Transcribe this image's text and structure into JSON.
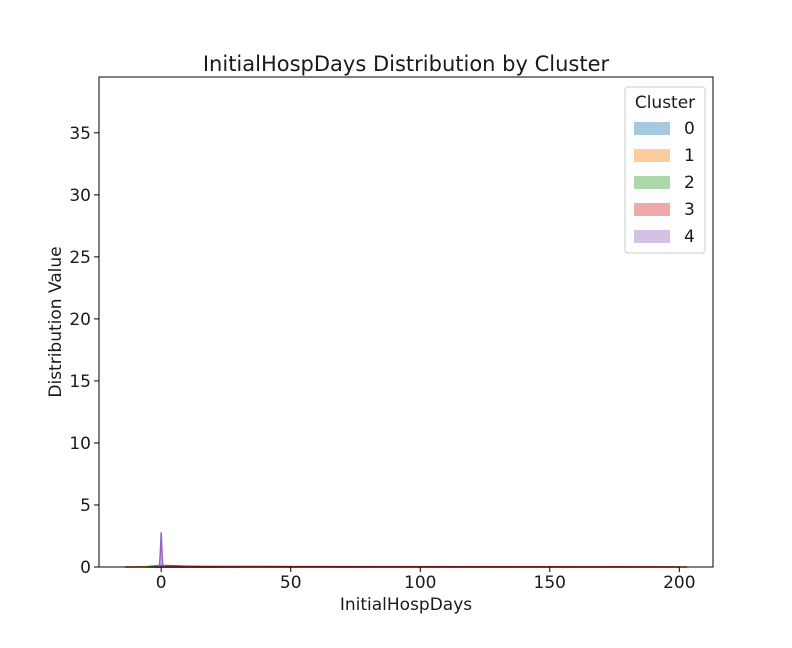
{
  "chart_data": {
    "type": "area",
    "title": "InitialHospDays Distribution by Cluster",
    "xlabel": "InitialHospDays",
    "ylabel": "Distribution Value",
    "xlim": [
      -24,
      213
    ],
    "ylim": [
      0,
      39.5
    ],
    "xticks": [
      0,
      50,
      100,
      150,
      200
    ],
    "xtick_labels": [
      "0",
      "50",
      "100",
      "150",
      "200"
    ],
    "yticks": [
      0,
      5,
      10,
      15,
      20,
      25,
      30,
      35
    ],
    "ytick_labels": [
      "0",
      "5",
      "10",
      "15",
      "20",
      "25",
      "30",
      "35"
    ],
    "grid": false,
    "legend": {
      "title": "Cluster",
      "position": "top-right"
    },
    "series": [
      {
        "name": "0",
        "color": "#1f77b4",
        "x": [
          -14,
          -5,
          0,
          5,
          10,
          15,
          22,
          30
        ],
        "y": [
          0,
          0.04,
          0.12,
          0.1,
          0.06,
          0.03,
          0.01,
          0
        ]
      },
      {
        "name": "1",
        "color": "#ff7f0e",
        "x": [
          -14,
          0,
          50,
          100,
          150,
          200
        ],
        "y": [
          0,
          0.03,
          0.03,
          0.03,
          0.02,
          0
        ]
      },
      {
        "name": "2",
        "color": "#2ca02c",
        "x": [
          -6,
          -2,
          0,
          3,
          8,
          15,
          22
        ],
        "y": [
          0,
          0.05,
          0.09,
          0.08,
          0.05,
          0.02,
          0
        ]
      },
      {
        "name": "3",
        "color": "#d62728",
        "x": [
          -3,
          0,
          25,
          50,
          100,
          150,
          200,
          203
        ],
        "y": [
          0,
          0.05,
          0.04,
          0.03,
          0.02,
          0.01,
          0.005,
          0
        ]
      },
      {
        "name": "4",
        "color": "#9467bd",
        "x": [
          -1.5,
          -0.6,
          -0.3,
          0,
          0.3,
          0.6,
          1.5
        ],
        "y": [
          0,
          0.2,
          1.3,
          2.8,
          1.3,
          0.2,
          0
        ]
      }
    ]
  }
}
